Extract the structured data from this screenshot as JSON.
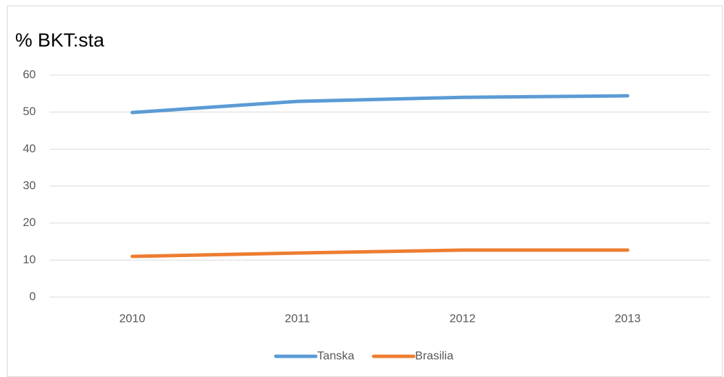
{
  "chart_data": {
    "type": "line",
    "title": "% BKT:sta",
    "categories": [
      "2010",
      "2011",
      "2012",
      "2013"
    ],
    "series": [
      {
        "name": "Tanska",
        "color": "#5b9bd5",
        "values": [
          49.9,
          52.9,
          54.0,
          54.4
        ]
      },
      {
        "name": "Brasilia",
        "color": "#ed7d31",
        "values": [
          11.0,
          11.9,
          12.7,
          12.7
        ]
      }
    ],
    "ylim": [
      0,
      60
    ],
    "yticks": [
      0,
      10,
      20,
      30,
      40,
      50,
      60
    ],
    "grid": true,
    "legend": "bottom"
  }
}
